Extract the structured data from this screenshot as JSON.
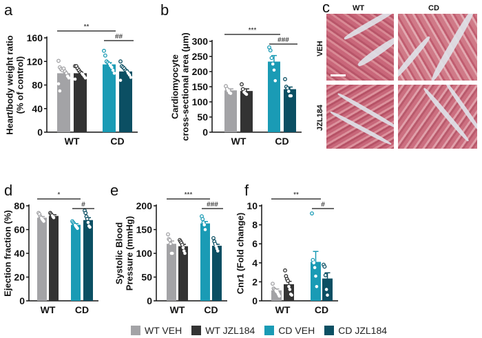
{
  "colors": {
    "wt_veh": "#a3a3a6",
    "wt_jzl": "#333333",
    "cd_veh": "#1a9bb5",
    "cd_jzl": "#0b4f63"
  },
  "legend": [
    {
      "label": "WT VEH",
      "key": "wt_veh"
    },
    {
      "label": "WT JZL184",
      "key": "wt_jzl"
    },
    {
      "label": "CD VEH",
      "key": "cd_veh"
    },
    {
      "label": "CD JZL184",
      "key": "cd_jzl"
    }
  ],
  "panel_c": {
    "letter": "c",
    "columns": [
      "WT",
      "CD"
    ],
    "rows": [
      "VEH",
      "JZL184"
    ]
  },
  "chart_data": [
    {
      "id": "a",
      "letter": "a",
      "type": "bar",
      "ylabel": [
        "Heart/body weight ratio",
        "(% of control)"
      ],
      "ylim": [
        0,
        160
      ],
      "yticks": [
        0,
        40,
        80,
        120,
        160
      ],
      "categories": [
        "WT",
        "CD"
      ],
      "series": [
        {
          "key": "wt_veh",
          "value": 100,
          "sem": 4,
          "points": [
            121,
            110,
            107,
            105,
            108,
            103,
            100,
            95,
            92,
            82,
            70
          ]
        },
        {
          "key": "wt_jzl",
          "value": 100,
          "sem": 2.5,
          "points": [
            112,
            112,
            108,
            105,
            102,
            100,
            98,
            95,
            92,
            90
          ]
        },
        {
          "key": "cd_veh",
          "value": 115,
          "sem": 3,
          "points": [
            138,
            130,
            120,
            118,
            116,
            113,
            110,
            105,
            100
          ]
        },
        {
          "key": "cd_jzl",
          "value": 103,
          "sem": 2.5,
          "points": [
            120,
            112,
            110,
            108,
            105,
            103,
            100,
            97,
            93,
            88
          ]
        }
      ],
      "sig": [
        {
          "label": "**",
          "from": 0,
          "to": 2
        },
        {
          "label": "##",
          "from": 2,
          "to": 3
        }
      ]
    },
    {
      "id": "b",
      "letter": "b",
      "type": "bar",
      "ylabel": [
        "Cardiomyocyte",
        "cross-sectional area (μm)"
      ],
      "ylim": [
        0,
        300
      ],
      "yticks": [
        0,
        50,
        100,
        150,
        200,
        250,
        300
      ],
      "categories": [
        "WT",
        "CD"
      ],
      "series": [
        {
          "key": "wt_veh",
          "value": 138,
          "sem": 5,
          "points": [
            152,
            143,
            137,
            130,
            128
          ]
        },
        {
          "key": "wt_jzl",
          "value": 136,
          "sem": 7,
          "points": [
            158,
            142,
            132,
            128,
            125
          ]
        },
        {
          "key": "cd_veh",
          "value": 233,
          "sem": 20,
          "points": [
            280,
            270,
            245,
            225,
            205,
            170
          ]
        },
        {
          "key": "cd_jzl",
          "value": 142,
          "sem": 7,
          "points": [
            175,
            150,
            145,
            135,
            120,
            120
          ]
        }
      ],
      "sig": [
        {
          "label": "***",
          "from": 0,
          "to": 2
        },
        {
          "label": "###",
          "from": 2,
          "to": 3
        }
      ]
    },
    {
      "id": "d",
      "letter": "d",
      "type": "bar",
      "ylabel": [
        "Ejection fraction (%)"
      ],
      "ylim": [
        0,
        80
      ],
      "yticks": [
        0,
        20,
        40,
        60,
        80
      ],
      "categories": [
        "WT",
        "CD"
      ],
      "series": [
        {
          "key": "wt_veh",
          "value": 70,
          "sem": 1,
          "points": [
            74,
            73,
            71,
            70,
            69,
            68,
            67
          ]
        },
        {
          "key": "wt_jzl",
          "value": 71.5,
          "sem": 1,
          "points": [
            74,
            73,
            72,
            71,
            70
          ]
        },
        {
          "key": "cd_veh",
          "value": 64,
          "sem": 1,
          "points": [
            67,
            66,
            65,
            64,
            63,
            62,
            61
          ]
        },
        {
          "key": "cd_jzl",
          "value": 68,
          "sem": 2,
          "points": [
            76,
            74,
            71,
            69,
            66,
            63,
            62
          ]
        }
      ],
      "sig": [
        {
          "label": "*",
          "from": 0,
          "to": 2
        },
        {
          "label": "#",
          "from": 2,
          "to": 3
        }
      ]
    },
    {
      "id": "e",
      "letter": "e",
      "type": "bar",
      "ylabel": [
        "Systolic Blood",
        "Pressure (mmHg)"
      ],
      "ylim": [
        0,
        200
      ],
      "yticks": [
        0,
        50,
        100,
        150,
        200
      ],
      "categories": [
        "WT",
        "CD"
      ],
      "series": [
        {
          "key": "wt_veh",
          "value": 120,
          "sem": 6,
          "points": [
            140,
            130,
            128,
            120,
            100,
            100
          ]
        },
        {
          "key": "wt_jzl",
          "value": 115,
          "sem": 4,
          "points": [
            128,
            125,
            122,
            118,
            112,
            105,
            100
          ]
        },
        {
          "key": "cd_veh",
          "value": 163,
          "sem": 4,
          "points": [
            178,
            172,
            165,
            160,
            150
          ]
        },
        {
          "key": "cd_jzl",
          "value": 116,
          "sem": 3,
          "points": [
            132,
            125,
            120,
            115,
            110,
            105
          ]
        }
      ],
      "sig": [
        {
          "label": "***",
          "from": 0,
          "to": 2
        },
        {
          "label": "###",
          "from": 2,
          "to": 3
        }
      ]
    },
    {
      "id": "f",
      "letter": "f",
      "type": "bar",
      "ylabel": [
        "Cnr1 (Fold change)"
      ],
      "ylim": [
        0,
        10
      ],
      "yticks": [
        0,
        2,
        4,
        6,
        8,
        10
      ],
      "categories": [
        "WT",
        "CD"
      ],
      "series": [
        {
          "key": "wt_veh",
          "value": 1.1,
          "sem": 0.15,
          "points": [
            1.8,
            1.3,
            1.2,
            1.1,
            1.0,
            0.9,
            0.7,
            0.5
          ]
        },
        {
          "key": "wt_jzl",
          "value": 1.75,
          "sem": 0.3,
          "points": [
            3.2,
            2.6,
            2.3,
            2.1,
            1.5,
            1.2,
            0.7,
            0.6
          ]
        },
        {
          "key": "cd_veh",
          "value": 4.1,
          "sem": 1.1,
          "points": [
            9.2,
            4.3,
            4.0,
            3.5,
            2.6,
            1.5
          ]
        },
        {
          "key": "cd_jzl",
          "value": 2.35,
          "sem": 0.6,
          "points": [
            3.8,
            3.6,
            2.7,
            1.2,
            0.6
          ]
        }
      ],
      "sig": [
        {
          "label": "**",
          "from": 0,
          "to": 2
        },
        {
          "label": "#",
          "from": 2,
          "to": 3
        }
      ]
    }
  ]
}
